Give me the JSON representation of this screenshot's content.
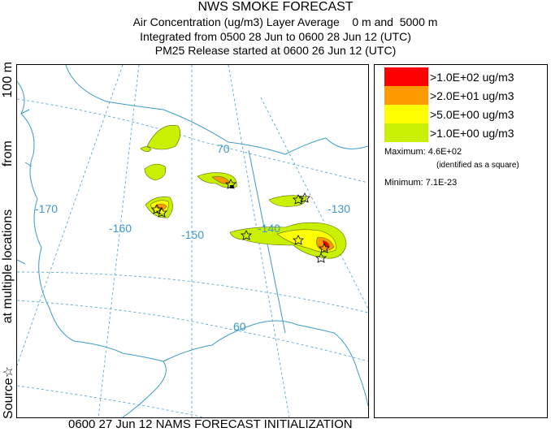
{
  "header": {
    "title": "NWS SMOKE FORECAST",
    "line1": "Air Concentration (ug/m3) Layer Average    0 m and  5000 m",
    "line2": "Integrated from 0500 28 Jun to 0600 28 Jun 12 (UTC)",
    "line3": "PM25 Release started at 0600 26 Jun 12 (UTC)"
  },
  "side_label": {
    "source": "Source☆",
    "at_multiple": "at multiple locations",
    "from": "from",
    "height": "100 m"
  },
  "map": {
    "longitude_labels": [
      "-170",
      "-160",
      "-150",
      "-140",
      "-130"
    ],
    "latitude_labels": [
      "70",
      "60"
    ],
    "colors": {
      "graticule": "#5aa8d2",
      "coast": "#3b9ac9",
      "level1": "#c8f000",
      "level2": "#ffff00",
      "level3": "#ff9900",
      "level4": "#ff0000"
    }
  },
  "legend": {
    "levels": [
      {
        "label": ">1.0E+02 ug/m3",
        "color": "#ff0000"
      },
      {
        "label": ">2.0E+01 ug/m3",
        "color": "#ff9900"
      },
      {
        "label": ">5.0E+00 ug/m3",
        "color": "#ffff00"
      },
      {
        "label": ">1.0E+00 ug/m3",
        "color": "#c8f000"
      }
    ],
    "maximum": "Maximum: 4.6E+02",
    "maximum_note": "(identified as a square)",
    "minimum": "Minimum: 7.1E-23"
  },
  "footer": "0600 27 Jun 12 NAMS FORECAST INITIALIZATION"
}
